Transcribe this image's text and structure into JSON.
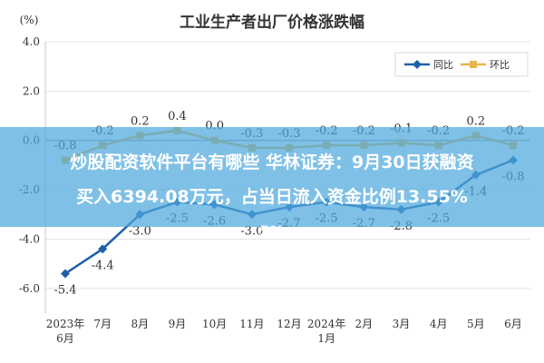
{
  "chart_data": {
    "type": "line",
    "title": "工业生产者出厂价格涨跌幅",
    "ylabel": "(%)",
    "ylim": [
      -7.0,
      4.0
    ],
    "yticks": [
      "4.0",
      "2.0",
      "0.0",
      "-2.0",
      "-4.0",
      "-6.0"
    ],
    "ytick_values": [
      4,
      2,
      0,
      -2,
      -4,
      -6
    ],
    "grid": true,
    "legend_position": "top-right",
    "categories": [
      "2023年\n6月",
      "7月",
      "8月",
      "9月",
      "10月",
      "11月",
      "12月",
      "2024年\n1月",
      "2月",
      "3月",
      "4月",
      "5月",
      "6月"
    ],
    "series": [
      {
        "name": "同比",
        "color": "#1f5fa8",
        "marker": "diamond",
        "values": [
          -5.4,
          -4.4,
          -3.0,
          -2.5,
          -2.6,
          -3.0,
          -2.7,
          -2.5,
          -2.7,
          -2.8,
          -2.5,
          -1.4,
          -0.8
        ],
        "labels": [
          "-5.4",
          "-4.4",
          "-3.0",
          "-2.5",
          "-2.6",
          "-3.0",
          "-2.7",
          "-2.5",
          "-2.7",
          "-2.8",
          "-2.5",
          "-1.4",
          "-0.8"
        ]
      },
      {
        "name": "环比",
        "color": "#e8b64a",
        "marker": "square",
        "values": [
          -0.8,
          -0.2,
          0.2,
          0.4,
          0.0,
          -0.3,
          -0.3,
          -0.2,
          -0.2,
          -0.1,
          -0.2,
          0.2,
          -0.2
        ],
        "labels": [
          "-0.8",
          "-0.2",
          "0.2",
          "0.4",
          "0.0",
          "-0.3",
          "-0.3",
          "-0.2",
          "-0.2",
          "-0.1",
          "-0.2",
          "0.2",
          "-0.2"
        ]
      }
    ]
  },
  "overlay": {
    "line1": "炒股配资软件平台有哪些 华林证券：9月30日获融资",
    "line2": "买入6394.08万元，占当日流入资金比例13.55%",
    "tail": "5%"
  }
}
